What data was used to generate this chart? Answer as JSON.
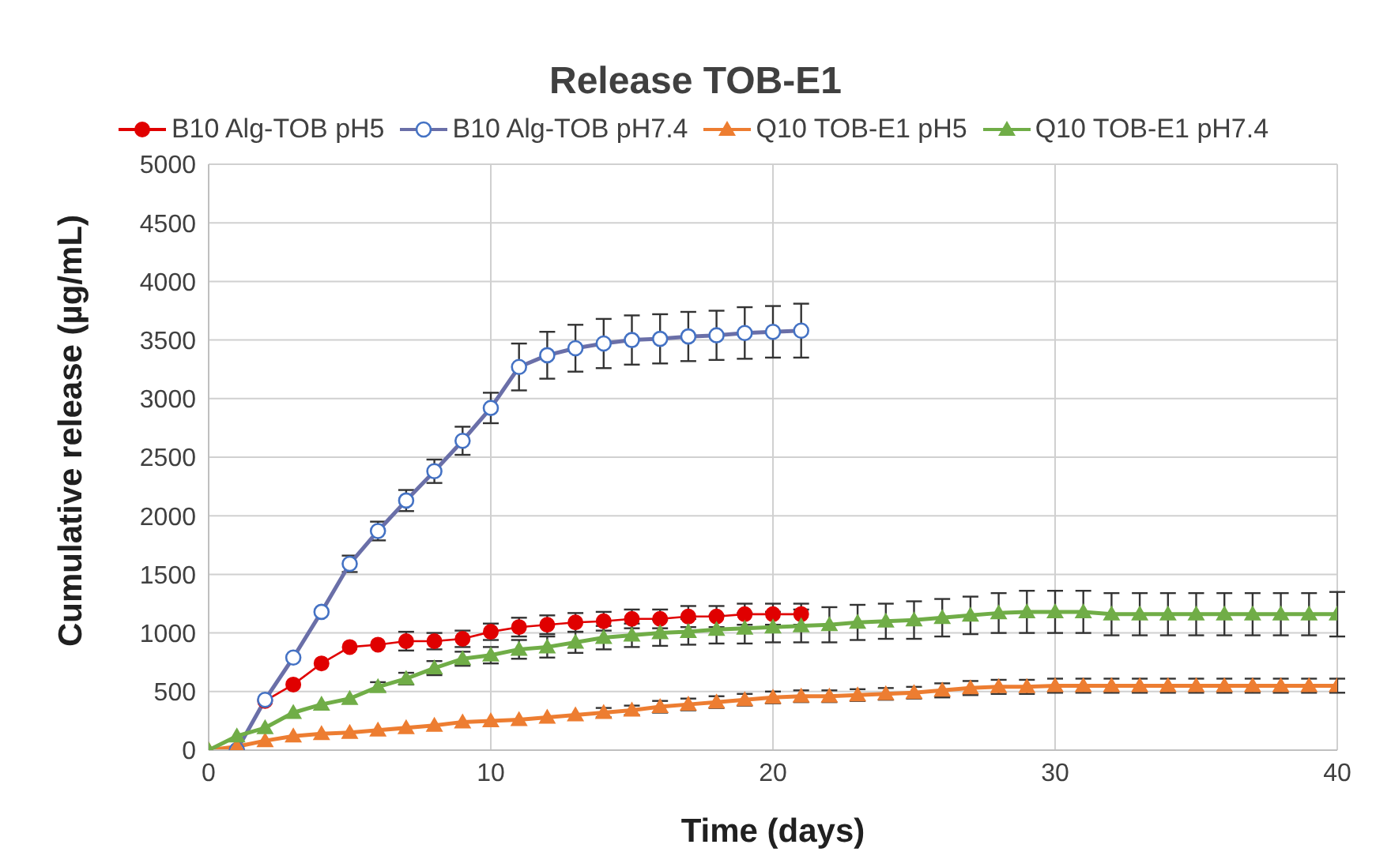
{
  "chart_data": {
    "type": "line",
    "title": "Release TOB-E1",
    "xlabel": "Time (days)",
    "ylabel": "Cumulative release (µg/mL)",
    "xlim": [
      0,
      40
    ],
    "xticks": [
      0,
      10,
      20,
      30,
      40
    ],
    "ylim": [
      0,
      5000
    ],
    "yticks": [
      0,
      500,
      1000,
      1500,
      2000,
      2500,
      3000,
      3500,
      4000,
      4500,
      5000
    ],
    "grid": true,
    "legend": "top",
    "line_style": "solid",
    "series": [
      {
        "name": "B10 Alg-TOB pH5",
        "color": "#e00000",
        "marker": "circle",
        "x": [
          1,
          2,
          3,
          4,
          5,
          6,
          7,
          8,
          9,
          10,
          11,
          12,
          13,
          14,
          15,
          16,
          17,
          18,
          19,
          20,
          21
        ],
        "values": [
          0,
          420,
          560,
          740,
          880,
          900,
          930,
          930,
          950,
          1010,
          1050,
          1070,
          1090,
          1100,
          1120,
          1120,
          1140,
          1140,
          1160,
          1160,
          1160
        ],
        "errors": [
          null,
          null,
          null,
          null,
          null,
          null,
          80,
          70,
          70,
          70,
          80,
          80,
          80,
          80,
          80,
          80,
          90,
          90,
          90,
          90,
          90
        ]
      },
      {
        "name": "B10 Alg-TOB pH7.4",
        "color": "#6a6fa8",
        "marker": "open circle",
        "x": [
          1,
          2,
          3,
          4,
          5,
          6,
          7,
          8,
          9,
          10,
          11,
          12,
          13,
          14,
          15,
          16,
          17,
          18,
          19,
          20,
          21
        ],
        "values": [
          0,
          430,
          790,
          1180,
          1590,
          1870,
          2130,
          2380,
          2640,
          2920,
          3270,
          3370,
          3430,
          3470,
          3500,
          3510,
          3530,
          3540,
          3560,
          3570,
          3580
        ],
        "errors": [
          null,
          null,
          null,
          null,
          70,
          80,
          90,
          100,
          120,
          130,
          200,
          200,
          200,
          210,
          210,
          210,
          210,
          210,
          220,
          220,
          230
        ]
      },
      {
        "name": "Q10 TOB-E1 pH5",
        "color": "#ed7d31",
        "marker": "triangle",
        "x": [
          0,
          1,
          2,
          3,
          4,
          5,
          6,
          7,
          8,
          9,
          10,
          11,
          12,
          13,
          14,
          15,
          16,
          17,
          18,
          19,
          20,
          21,
          22,
          23,
          24,
          25,
          26,
          27,
          28,
          29,
          30,
          31,
          32,
          33,
          34,
          35,
          36,
          37,
          38,
          39,
          40
        ],
        "values": [
          0,
          30,
          80,
          120,
          140,
          150,
          170,
          190,
          210,
          240,
          250,
          260,
          280,
          300,
          320,
          340,
          370,
          390,
          410,
          430,
          450,
          460,
          460,
          470,
          480,
          490,
          510,
          530,
          540,
          540,
          550,
          550,
          550,
          550,
          550,
          550,
          550,
          550,
          550,
          550,
          550
        ],
        "errors": [
          null,
          null,
          null,
          null,
          null,
          null,
          null,
          null,
          null,
          null,
          null,
          null,
          null,
          null,
          40,
          40,
          50,
          50,
          50,
          50,
          50,
          50,
          50,
          50,
          50,
          50,
          60,
          60,
          60,
          60,
          60,
          60,
          60,
          60,
          60,
          60,
          60,
          60,
          60,
          60,
          60
        ]
      },
      {
        "name": "Q10 TOB-E1 pH7.4",
        "color": "#70ad47",
        "marker": "triangle",
        "x": [
          0,
          1,
          2,
          3,
          4,
          5,
          6,
          7,
          8,
          9,
          10,
          11,
          12,
          13,
          14,
          15,
          16,
          17,
          18,
          19,
          20,
          21,
          22,
          23,
          24,
          25,
          26,
          27,
          28,
          29,
          30,
          31,
          32,
          33,
          34,
          35,
          36,
          37,
          38,
          39,
          40
        ],
        "values": [
          0,
          120,
          190,
          320,
          390,
          440,
          540,
          610,
          700,
          780,
          810,
          860,
          880,
          920,
          960,
          980,
          1000,
          1010,
          1030,
          1040,
          1050,
          1060,
          1070,
          1090,
          1100,
          1110,
          1130,
          1150,
          1170,
          1180,
          1180,
          1180,
          1160,
          1160,
          1160,
          1160,
          1160,
          1160,
          1160,
          1160,
          1160
        ],
        "errors": [
          null,
          null,
          null,
          null,
          null,
          null,
          40,
          50,
          60,
          60,
          70,
          80,
          90,
          90,
          100,
          100,
          110,
          110,
          120,
          130,
          130,
          140,
          150,
          150,
          150,
          160,
          160,
          160,
          170,
          180,
          180,
          180,
          180,
          180,
          180,
          180,
          180,
          180,
          180,
          180,
          190
        ]
      }
    ]
  }
}
